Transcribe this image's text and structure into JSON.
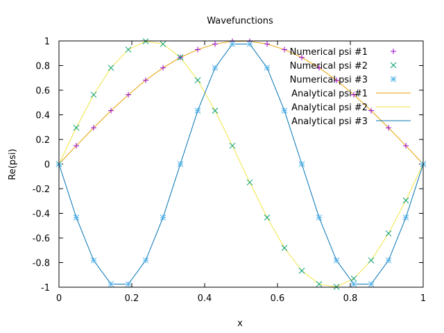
{
  "chart_data": {
    "type": "line",
    "title": "Wavefunctions",
    "xlabel": "x",
    "ylabel": "Re(psi)",
    "xlim": [
      0,
      1
    ],
    "ylim": [
      -1,
      1
    ],
    "x_ticks": [
      "0",
      "0.2",
      "0.4",
      "0.6",
      "0.8",
      "1"
    ],
    "x_tick_values": [
      0,
      0.2,
      0.4,
      0.6,
      0.8,
      1
    ],
    "y_ticks": [
      "-1",
      "-0.8",
      "-0.6",
      "-0.4",
      "-0.2",
      "0",
      "0.2",
      "0.4",
      "0.6",
      "0.8",
      "1"
    ],
    "y_tick_values": [
      -1,
      -0.8,
      -0.6,
      -0.4,
      -0.2,
      0,
      0.2,
      0.4,
      0.6,
      0.8,
      1
    ],
    "grid": false,
    "legend_position": "top-right",
    "x": [
      0,
      0.0476,
      0.0952,
      0.1429,
      0.1905,
      0.2381,
      0.2857,
      0.3333,
      0.381,
      0.4286,
      0.4762,
      0.5238,
      0.5714,
      0.619,
      0.6667,
      0.7143,
      0.7619,
      0.8095,
      0.8571,
      0.9048,
      0.9524,
      1
    ],
    "series": [
      {
        "name": "Numerical psi #1",
        "style": "points",
        "marker": "plus",
        "color": "#9400d3",
        "values": [
          0,
          0.149,
          0.295,
          0.434,
          0.563,
          0.681,
          0.782,
          0.866,
          0.93,
          0.975,
          0.997,
          0.997,
          0.975,
          0.93,
          0.866,
          0.782,
          0.681,
          0.563,
          0.434,
          0.295,
          0.149,
          0
        ]
      },
      {
        "name": "Numerical psi #2",
        "style": "points",
        "marker": "cross",
        "color": "#009e73",
        "values": [
          0,
          0.295,
          0.563,
          0.782,
          0.93,
          0.997,
          0.975,
          0.866,
          0.681,
          0.434,
          0.149,
          -0.149,
          -0.434,
          -0.681,
          -0.866,
          -0.975,
          -0.997,
          -0.93,
          -0.782,
          -0.563,
          -0.295,
          0
        ]
      },
      {
        "name": "Numerical psi #3",
        "style": "points",
        "marker": "star",
        "color": "#56b4e9",
        "values": [
          0,
          -0.434,
          -0.782,
          -0.975,
          -0.975,
          -0.782,
          -0.434,
          0,
          0.434,
          0.782,
          0.975,
          0.975,
          0.782,
          0.434,
          0,
          -0.434,
          -0.782,
          -0.975,
          -0.975,
          -0.782,
          -0.434,
          0
        ]
      },
      {
        "name": "Analytical psi #1",
        "style": "line",
        "color": "#e69f00",
        "values": [
          0,
          0.149,
          0.295,
          0.434,
          0.563,
          0.681,
          0.782,
          0.866,
          0.93,
          0.975,
          0.997,
          0.997,
          0.975,
          0.93,
          0.866,
          0.782,
          0.681,
          0.563,
          0.434,
          0.295,
          0.149,
          0
        ]
      },
      {
        "name": "Analytical psi #2",
        "style": "line",
        "color": "#f0e442",
        "values": [
          0,
          0.295,
          0.563,
          0.782,
          0.93,
          0.997,
          0.975,
          0.866,
          0.681,
          0.434,
          0.149,
          -0.149,
          -0.434,
          -0.681,
          -0.866,
          -0.975,
          -0.997,
          -0.93,
          -0.782,
          -0.563,
          -0.295,
          0
        ]
      },
      {
        "name": "Analytical psi #3",
        "style": "line",
        "color": "#0072b2",
        "values": [
          0,
          -0.434,
          -0.782,
          -0.975,
          -0.975,
          -0.782,
          -0.434,
          0,
          0.434,
          0.782,
          0.975,
          0.975,
          0.782,
          0.434,
          0,
          -0.434,
          -0.782,
          -0.975,
          -0.975,
          -0.782,
          -0.434,
          0
        ]
      }
    ]
  }
}
